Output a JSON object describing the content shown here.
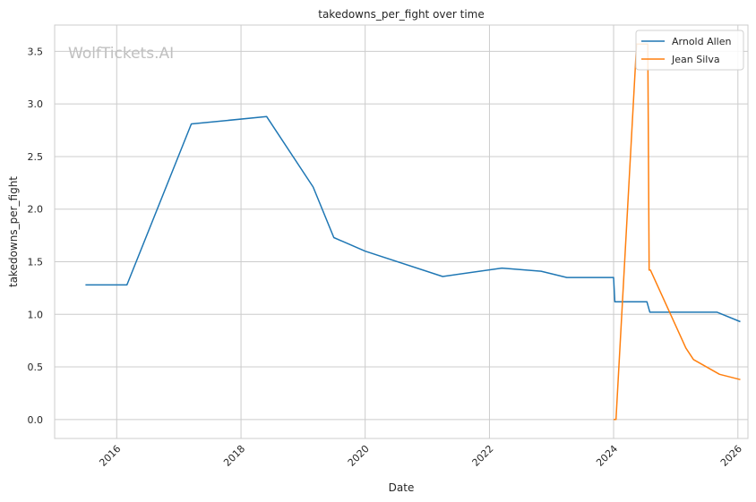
{
  "watermark": "WolfTickets.AI",
  "chart_data": {
    "type": "line",
    "title": "takedowns_per_fight over time",
    "xlabel": "Date",
    "ylabel": "takedowns_per_fight",
    "xlim": [
      "2015-01-01",
      "2026-03-01"
    ],
    "ylim": [
      -0.18,
      3.75
    ],
    "x_ticks": [
      "2016",
      "2018",
      "2020",
      "2022",
      "2024",
      "2026"
    ],
    "y_ticks": [
      "0.0",
      "0.5",
      "1.0",
      "1.5",
      "2.0",
      "2.5",
      "3.0",
      "3.5"
    ],
    "grid": true,
    "legend_position": "top-right",
    "series": [
      {
        "name": "Arnold Allen",
        "color": "#1f77b4",
        "points": [
          [
            "2015-07-01",
            1.28
          ],
          [
            "2016-03-01",
            1.28
          ],
          [
            "2017-03-15",
            2.81
          ],
          [
            "2018-06-01",
            2.88
          ],
          [
            "2019-03-01",
            2.21
          ],
          [
            "2019-07-01",
            1.73
          ],
          [
            "2020-01-01",
            1.6
          ],
          [
            "2021-04-01",
            1.36
          ],
          [
            "2022-03-15",
            1.44
          ],
          [
            "2022-11-01",
            1.41
          ],
          [
            "2023-04-01",
            1.35
          ],
          [
            "2024-01-01",
            1.35
          ],
          [
            "2024-01-08",
            1.12
          ],
          [
            "2024-07-15",
            1.12
          ],
          [
            "2024-08-01",
            1.02
          ],
          [
            "2025-09-01",
            1.02
          ],
          [
            "2026-01-15",
            0.93
          ]
        ]
      },
      {
        "name": "Jean Silva",
        "color": "#ff7f0e",
        "points": [
          [
            "2024-01-01",
            0.0
          ],
          [
            "2024-01-15",
            0.0
          ],
          [
            "2024-05-15",
            3.57
          ],
          [
            "2024-07-20",
            3.57
          ],
          [
            "2024-07-28",
            1.42
          ],
          [
            "2024-08-05",
            1.42
          ],
          [
            "2025-03-01",
            0.68
          ],
          [
            "2025-04-15",
            0.57
          ],
          [
            "2025-09-15",
            0.43
          ],
          [
            "2026-01-15",
            0.38
          ]
        ]
      }
    ]
  }
}
